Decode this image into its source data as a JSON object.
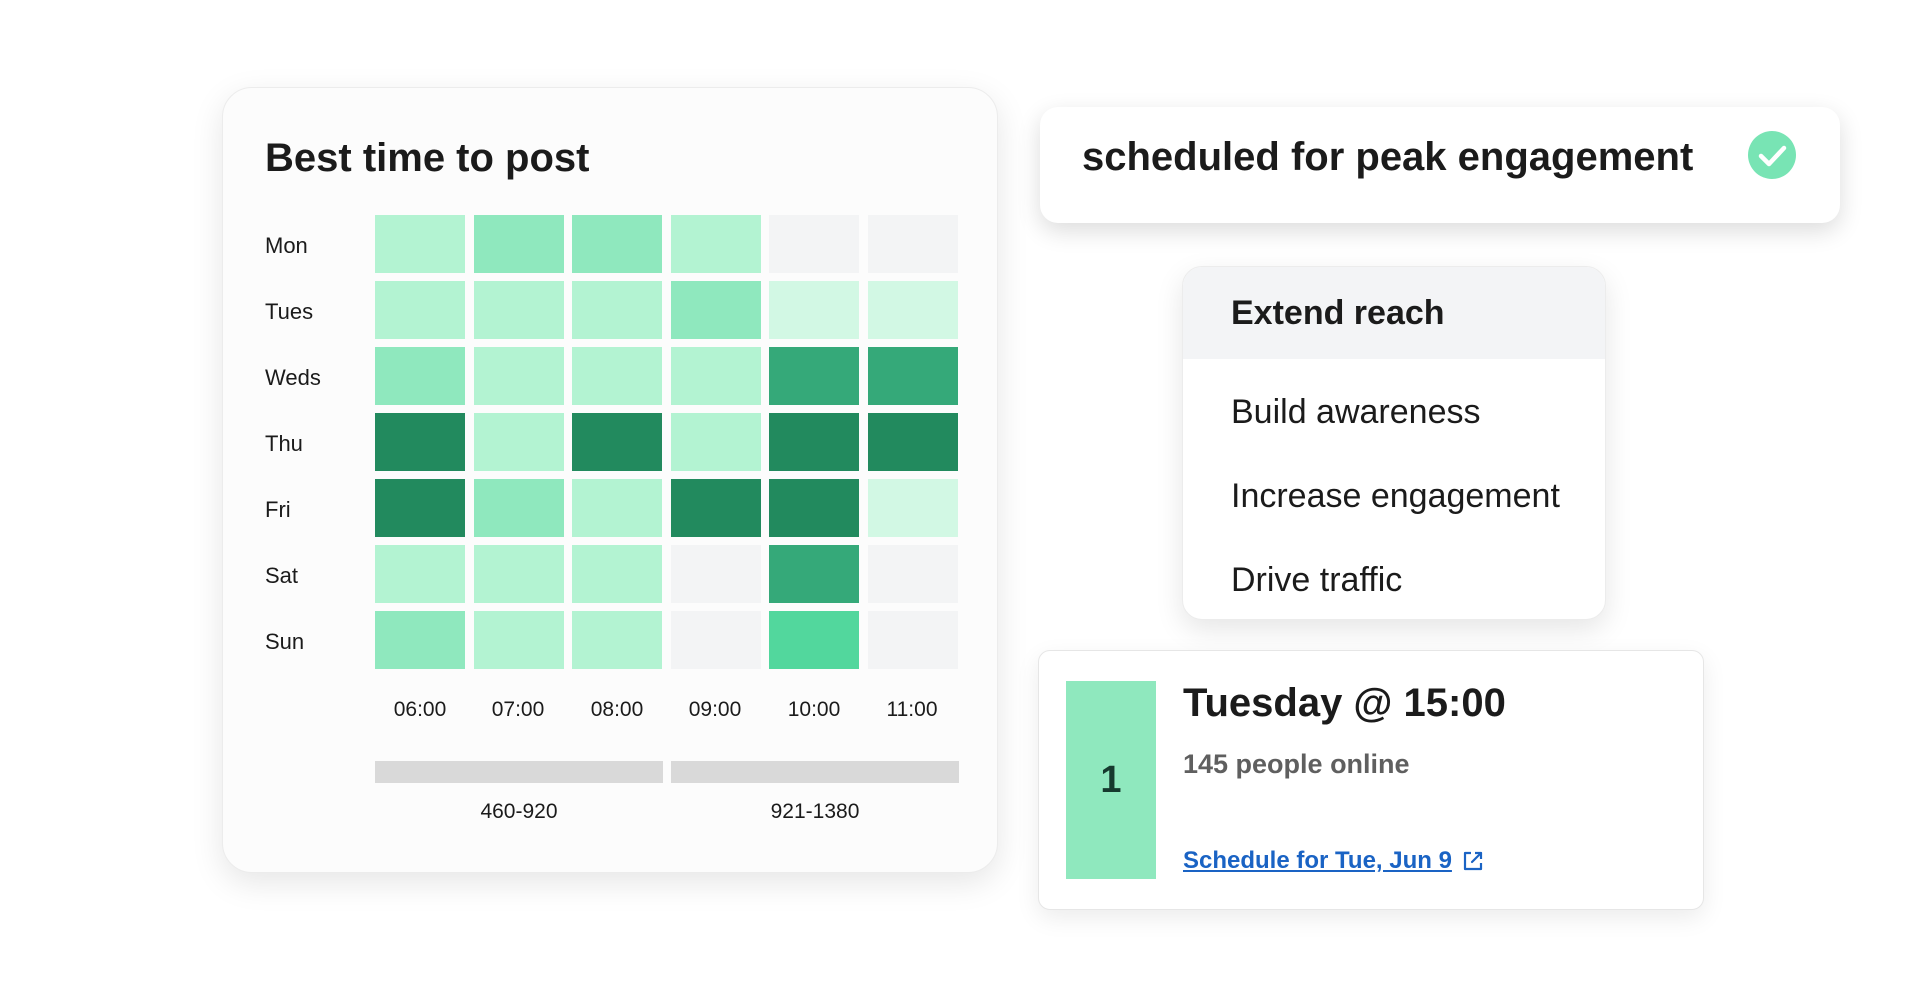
{
  "heatmap": {
    "title": "Best time to post",
    "days": [
      "Mon",
      "Tues",
      "Weds",
      "Thu",
      "Fri",
      "Sat",
      "Sun"
    ],
    "hours": [
      "06:00",
      "07:00",
      "08:00",
      "09:00",
      "10:00",
      "11:00"
    ],
    "levels": [
      [
        2,
        3,
        3,
        2,
        0,
        0
      ],
      [
        2,
        2,
        2,
        3,
        1,
        1
      ],
      [
        3,
        2,
        2,
        2,
        5,
        5
      ],
      [
        6,
        2,
        6,
        2,
        6,
        6
      ],
      [
        6,
        3,
        2,
        6,
        6,
        1
      ],
      [
        2,
        2,
        2,
        0,
        5,
        0
      ],
      [
        3,
        2,
        2,
        0,
        4,
        0
      ]
    ],
    "palette": [
      "#f3f4f5",
      "#d2f8e4",
      "#b3f3d2",
      "#8fe8be",
      "#52d79d",
      "#35a979",
      "#228a5e"
    ],
    "ranges": [
      "460-920",
      "921-1380"
    ]
  },
  "banner": {
    "text": "scheduled for peak engagement",
    "icon": "check-circle-icon",
    "icon_color": "#78e4b4"
  },
  "menu": {
    "items": [
      "Extend reach",
      "Build awareness",
      "Increase engagement",
      "Drive traffic"
    ],
    "selected_index": 0
  },
  "suggestion": {
    "rank": "1",
    "title": "Tuesday @ 15:00",
    "subtitle": "145 people online",
    "link": "Schedule for Tue, Jun 9",
    "link_icon": "external-link-icon",
    "link_color": "#1a63c4"
  }
}
